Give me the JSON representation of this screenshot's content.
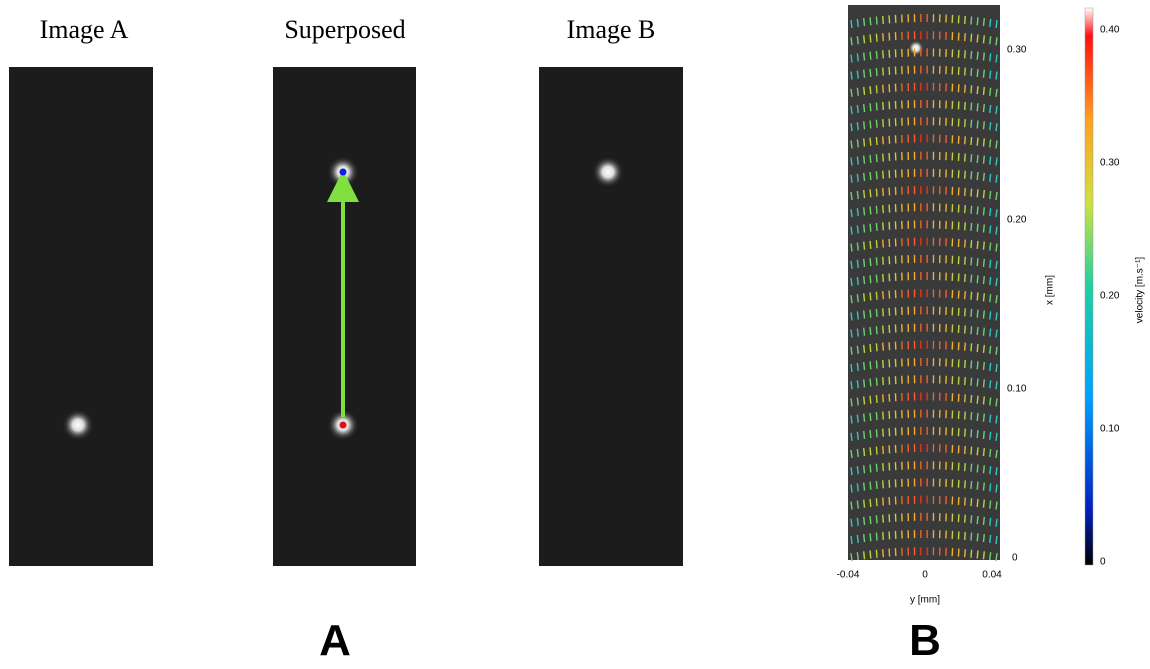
{
  "panel_a": {
    "label": "A",
    "images": [
      {
        "title": "Image A"
      },
      {
        "title": "Superposed"
      },
      {
        "title": "Image B"
      }
    ]
  },
  "panel_b": {
    "label": "B",
    "x_axis_label": "y [mm]",
    "y_axis_label": "x [mm]",
    "x_tick_labels": [
      "-0.04",
      "0",
      "0.04"
    ],
    "y_tick_labels": [
      "0",
      "0.10",
      "0.20",
      "0.30"
    ],
    "colorbar_label": "velocity [m.s⁻¹]",
    "colorbar_tick_labels": [
      "0",
      "0.10",
      "0.20",
      "0.30",
      "0.40"
    ]
  }
}
